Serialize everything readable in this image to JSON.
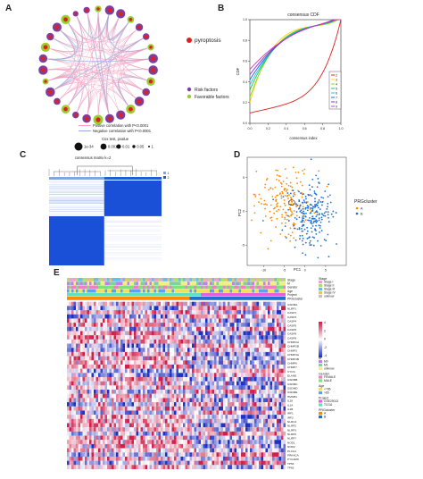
{
  "panels": {
    "a": {
      "letter": "A",
      "legend_pyroptosis": "pyroptosis",
      "legend_risk": "Risk factors",
      "legend_favorable": "Favorable factors",
      "legend_pos": "Postive correlation with P<0.0001",
      "legend_neg": "Negative correlation with P<0.0001",
      "pvalue_title": "Cox test, pvalue",
      "pvalue_labels": [
        "1e-34",
        "0.001",
        "0.01",
        "0.05",
        "1"
      ],
      "colors": {
        "risk": "#7b3fa0",
        "favorable": "#9acd32",
        "pyroptosis": "#e02020",
        "pos_line": "#f0a0c0",
        "neg_line": "#8fb0e0"
      }
    },
    "b": {
      "letter": "B",
      "title": "consensus CDF",
      "ylabel": "CDF",
      "xlabel": "consensus index",
      "xticks": [
        "0.0",
        "0.2",
        "0.4",
        "0.6",
        "0.8",
        "1.0"
      ],
      "yticks": [
        "0.0",
        "0.2",
        "0.4",
        "0.6",
        "0.8",
        "1.0"
      ],
      "legend": [
        "2",
        "3",
        "4",
        "5",
        "6",
        "7",
        "8",
        "9"
      ],
      "colors": [
        "#e02020",
        "#ffd700",
        "#7fdc30",
        "#20c060",
        "#20c8e0",
        "#2060e0",
        "#8030e0",
        "#e030c0"
      ]
    },
    "c": {
      "letter": "C",
      "title": "consensus matrix k=2",
      "legend": [
        "1",
        "2"
      ],
      "colors": {
        "cluster1": "#7fa8e0",
        "cluster2": "#1f5fd0",
        "high": "#1a4fd8",
        "low": "#ffffff"
      }
    },
    "d": {
      "letter": "D",
      "xlabel": "PC1",
      "ylabel": "PC2",
      "xticks": [
        "-10",
        "-5",
        "0",
        "5"
      ],
      "yticks": [
        "-5",
        "0",
        "5"
      ],
      "legend_title": "PRGcluster",
      "legend": [
        "A",
        "B"
      ],
      "colors": {
        "A": "#ff8c00",
        "B": "#1f6fd0"
      }
    },
    "e": {
      "letter": "E",
      "annotation_rows": [
        "Stage",
        "M",
        "Gender",
        "Age",
        "Project",
        "PRGcluster"
      ],
      "genes": [
        "GSDMA",
        "NLRP1",
        "CASP1",
        "CASP3",
        "CASP4",
        "CASP5",
        "CASP6",
        "CASP8",
        "CASP9",
        "CHMP2A",
        "CHMP2B",
        "CHMP3",
        "CHMP4A",
        "CHMP4B",
        "CHMP6",
        "CHMP7",
        "CYCS",
        "ELANE",
        "GSDMB",
        "GSDMC",
        "GSDMD",
        "GSDME",
        "HMGB1",
        "IL18",
        "IL1A",
        "IL1B",
        "IRF1",
        "IRF2",
        "NLRC4",
        "NLRP2",
        "NLRP3",
        "NLRP6",
        "NLRP7",
        "NOD1",
        "NOD2",
        "PLCG1",
        "PRKACA",
        "PYCARD",
        "TP53",
        "TP63"
      ],
      "colorbar_ticks": [
        "4",
        "2",
        "0",
        "-2",
        "-4"
      ],
      "legend_groups": [
        {
          "title": "Stage",
          "items": [
            "Stage I",
            "Stage II",
            "Stage III",
            "Stage IV",
            "unknow"
          ],
          "colors": [
            "#f0a0d0",
            "#b0e060",
            "#60c0f0",
            "#f0c060",
            "#c0c0c0"
          ]
        },
        {
          "title": "M",
          "items": [
            "M0",
            "M1",
            "unknow"
          ],
          "colors": [
            "#c080f0",
            "#80d0a0",
            "#f0f080"
          ]
        },
        {
          "title": "Gender",
          "items": [
            "FEMALE",
            "MALE"
          ],
          "colors": [
            "#f080c0",
            "#80e080"
          ]
        },
        {
          "title": "Age",
          "items": [
            "<=65",
            ">65"
          ],
          "colors": [
            "#f0e060",
            "#60a0f0"
          ]
        },
        {
          "title": "Project",
          "items": [
            "GSE29013",
            "TCGA"
          ],
          "colors": [
            "#e060e0",
            "#60e0c0"
          ]
        },
        {
          "title": "PRGcluster",
          "items": [
            "A",
            "B"
          ],
          "colors": [
            "#ff8c00",
            "#1f6fd0"
          ]
        }
      ],
      "heat_colors": {
        "high": "#d0204a",
        "mid": "#ffffff",
        "low": "#2030c0"
      }
    }
  }
}
